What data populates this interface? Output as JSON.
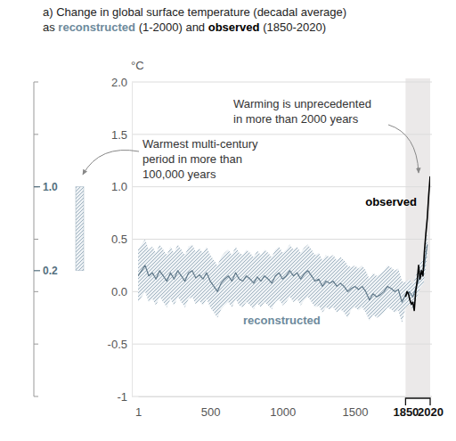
{
  "chart_data": {
    "type": "line",
    "title": "a) Change in global surface temperature (decadal average)",
    "subtitle": [
      "as ",
      "reconstructed",
      " (1-2000) and ",
      "observed",
      " (1850-2020)"
    ],
    "ylabel": "°C",
    "xlim": [
      1,
      2020
    ],
    "xticks": [
      1,
      500,
      1000,
      1500,
      1850,
      2020
    ],
    "ylim": [
      -1,
      2
    ],
    "yticks": [
      -1,
      -0.5,
      {
        "value": 0,
        "label": "0.0"
      },
      0.5,
      {
        "value": 1,
        "label": "1.0"
      },
      1.5,
      {
        "value": 2,
        "label": "2.0"
      }
    ],
    "grid": true,
    "shaded_range": [
      1850,
      2020
    ],
    "paleo_range": {
      "values": [
        0.2,
        1.0
      ],
      "value_labels": [
        "0.2",
        "1.0"
      ]
    },
    "annotations": [
      [
        "Warmest multi-century",
        "period in more than",
        "100,000 years"
      ],
      [
        "Warming is unprecedented",
        "in more than 2000 years"
      ]
    ],
    "series": [
      {
        "name": "reconstructed",
        "color": "#60798a",
        "x": [
          1,
          25,
          50,
          75,
          100,
          125,
          150,
          175,
          200,
          225,
          250,
          275,
          300,
          325,
          350,
          375,
          400,
          425,
          450,
          475,
          500,
          525,
          550,
          575,
          600,
          625,
          650,
          675,
          700,
          725,
          750,
          775,
          800,
          825,
          850,
          875,
          900,
          925,
          950,
          975,
          1000,
          1025,
          1050,
          1075,
          1100,
          1125,
          1150,
          1175,
          1200,
          1225,
          1250,
          1275,
          1300,
          1325,
          1350,
          1375,
          1400,
          1425,
          1450,
          1475,
          1500,
          1525,
          1550,
          1575,
          1600,
          1625,
          1650,
          1675,
          1700,
          1725,
          1750,
          1775,
          1800,
          1825,
          1850,
          1875,
          1900,
          1925,
          1950,
          1975,
          2000
        ],
        "values": [
          0.15,
          0.2,
          0.25,
          0.15,
          0.18,
          0.12,
          0.2,
          0.15,
          0.1,
          0.18,
          0.12,
          0.2,
          0.15,
          0.1,
          0.18,
          0.2,
          0.13,
          0.16,
          0.12,
          0.18,
          0.1,
          0.05,
          0.0,
          0.08,
          0.12,
          0.15,
          0.1,
          0.18,
          0.12,
          0.1,
          0.15,
          0.12,
          0.08,
          0.14,
          0.1,
          0.15,
          0.12,
          0.08,
          0.15,
          0.18,
          0.12,
          0.15,
          0.2,
          0.15,
          0.18,
          0.12,
          0.17,
          0.2,
          0.15,
          0.1,
          0.12,
          0.05,
          0.1,
          0.08,
          0.1,
          0.05,
          0.08,
          0.05,
          0.0,
          0.03,
          0.05,
          0.02,
          0.05,
          0.0,
          -0.08,
          -0.02,
          -0.05,
          -0.03,
          0.0,
          0.05,
          0.03,
          0.0,
          0.02,
          -0.1,
          -0.03,
          0.0,
          -0.05,
          0.05,
          0.15,
          0.2,
          0.45
        ],
        "lower": [
          -0.1,
          -0.05,
          0.0,
          -0.1,
          -0.07,
          -0.13,
          -0.05,
          -0.1,
          -0.15,
          -0.07,
          -0.13,
          -0.05,
          -0.1,
          -0.15,
          -0.07,
          -0.05,
          -0.12,
          -0.09,
          -0.13,
          -0.07,
          -0.15,
          -0.2,
          -0.25,
          -0.17,
          -0.13,
          -0.1,
          -0.15,
          -0.07,
          -0.13,
          -0.15,
          -0.1,
          -0.13,
          -0.17,
          -0.11,
          -0.15,
          -0.1,
          -0.13,
          -0.17,
          -0.1,
          -0.07,
          -0.13,
          -0.1,
          -0.05,
          -0.1,
          -0.07,
          -0.13,
          -0.08,
          -0.05,
          -0.1,
          -0.15,
          -0.13,
          -0.2,
          -0.15,
          -0.17,
          -0.15,
          -0.2,
          -0.17,
          -0.2,
          -0.25,
          -0.17,
          -0.15,
          -0.18,
          -0.15,
          -0.2,
          -0.28,
          -0.22,
          -0.25,
          -0.23,
          -0.2,
          -0.15,
          -0.17,
          -0.2,
          -0.18,
          -0.3,
          -0.15,
          -0.12,
          -0.17,
          -0.07,
          0.03,
          0.08,
          0.33
        ],
        "upper": [
          0.4,
          0.45,
          0.5,
          0.4,
          0.43,
          0.37,
          0.45,
          0.4,
          0.35,
          0.43,
          0.37,
          0.45,
          0.4,
          0.35,
          0.43,
          0.45,
          0.38,
          0.41,
          0.37,
          0.43,
          0.35,
          0.3,
          0.25,
          0.33,
          0.37,
          0.4,
          0.35,
          0.43,
          0.37,
          0.35,
          0.4,
          0.37,
          0.33,
          0.39,
          0.35,
          0.4,
          0.37,
          0.33,
          0.4,
          0.43,
          0.37,
          0.4,
          0.45,
          0.4,
          0.43,
          0.37,
          0.42,
          0.45,
          0.4,
          0.35,
          0.37,
          0.3,
          0.35,
          0.33,
          0.35,
          0.3,
          0.33,
          0.3,
          0.25,
          0.23,
          0.25,
          0.22,
          0.25,
          0.2,
          0.12,
          0.18,
          0.15,
          0.17,
          0.2,
          0.25,
          0.23,
          0.2,
          0.22,
          0.1,
          0.09,
          0.12,
          0.07,
          0.17,
          0.27,
          0.32,
          0.57
        ]
      },
      {
        "name": "observed",
        "color": "#000000",
        "x": [
          1850,
          1860,
          1870,
          1880,
          1890,
          1900,
          1910,
          1920,
          1930,
          1940,
          1950,
          1960,
          1970,
          1980,
          1990,
          2000,
          2010,
          2020
        ],
        "values": [
          -0.05,
          0.0,
          -0.02,
          -0.08,
          -0.12,
          -0.1,
          -0.18,
          0.0,
          0.1,
          0.25,
          0.12,
          0.2,
          0.15,
          0.38,
          0.55,
          0.7,
          0.92,
          1.1
        ]
      }
    ]
  }
}
